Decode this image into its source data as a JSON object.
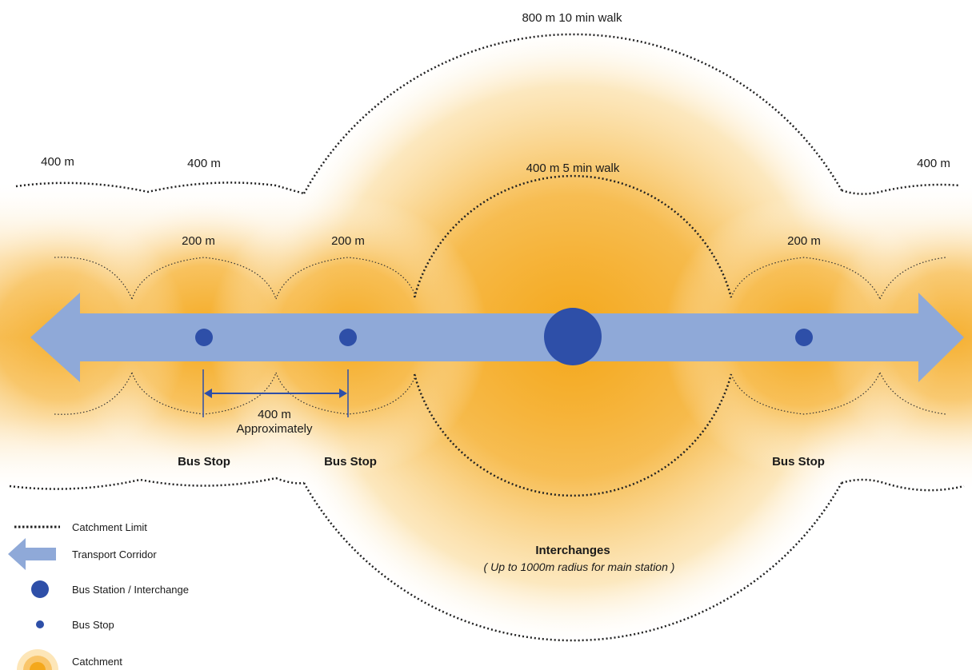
{
  "labels": {
    "top_outer": "800 m 10 min walk",
    "left_400_a": "400 m",
    "left_400_b": "400 m",
    "right_400": "400 m",
    "inner_walk": "400 m 5 min walk",
    "r200_a": "200 m",
    "r200_b": "200 m",
    "r200_c": "200 m",
    "spacing_value": "400 m",
    "spacing_note": "Approximately",
    "bus_stop_1": "Bus Stop",
    "bus_stop_2": "Bus Stop",
    "bus_stop_3": "Bus Stop",
    "interchanges_title": "Interchanges",
    "interchanges_note": "( Up to 1000m radius for main station )"
  },
  "legend": {
    "catchment_limit": "Catchment Limit",
    "transport_corridor": "Transport Corridor",
    "bus_station": "Bus Station / Interchange",
    "bus_stop": "Bus Stop",
    "catchment": "Catchment"
  },
  "colors": {
    "corridor": "#8fa9d8",
    "station": "#2e4fa8",
    "catchment_core": "#f4a81c",
    "dotted_line": "#222222"
  }
}
